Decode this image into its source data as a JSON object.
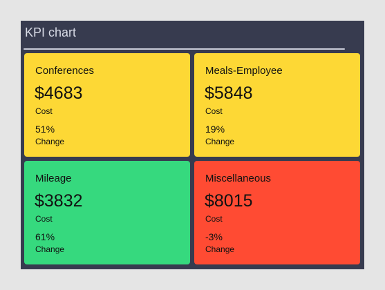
{
  "panel": {
    "title": "KPI chart"
  },
  "tiles": [
    {
      "name": "Conferences",
      "value": "$4683",
      "value_label": "Cost",
      "change": "51%",
      "change_label": "Change",
      "color": "#fdd835"
    },
    {
      "name": "Meals-Employee",
      "value": "$5848",
      "value_label": "Cost",
      "change": "19%",
      "change_label": "Change",
      "color": "#fdd835"
    },
    {
      "name": "Mileage",
      "value": "$3832",
      "value_label": "Cost",
      "change": "61%",
      "change_label": "Change",
      "color": "#36d97e"
    },
    {
      "name": "Miscellaneous",
      "value": "$8015",
      "value_label": "Cost",
      "change": "-3%",
      "change_label": "Change",
      "color": "#ff4b33"
    }
  ]
}
